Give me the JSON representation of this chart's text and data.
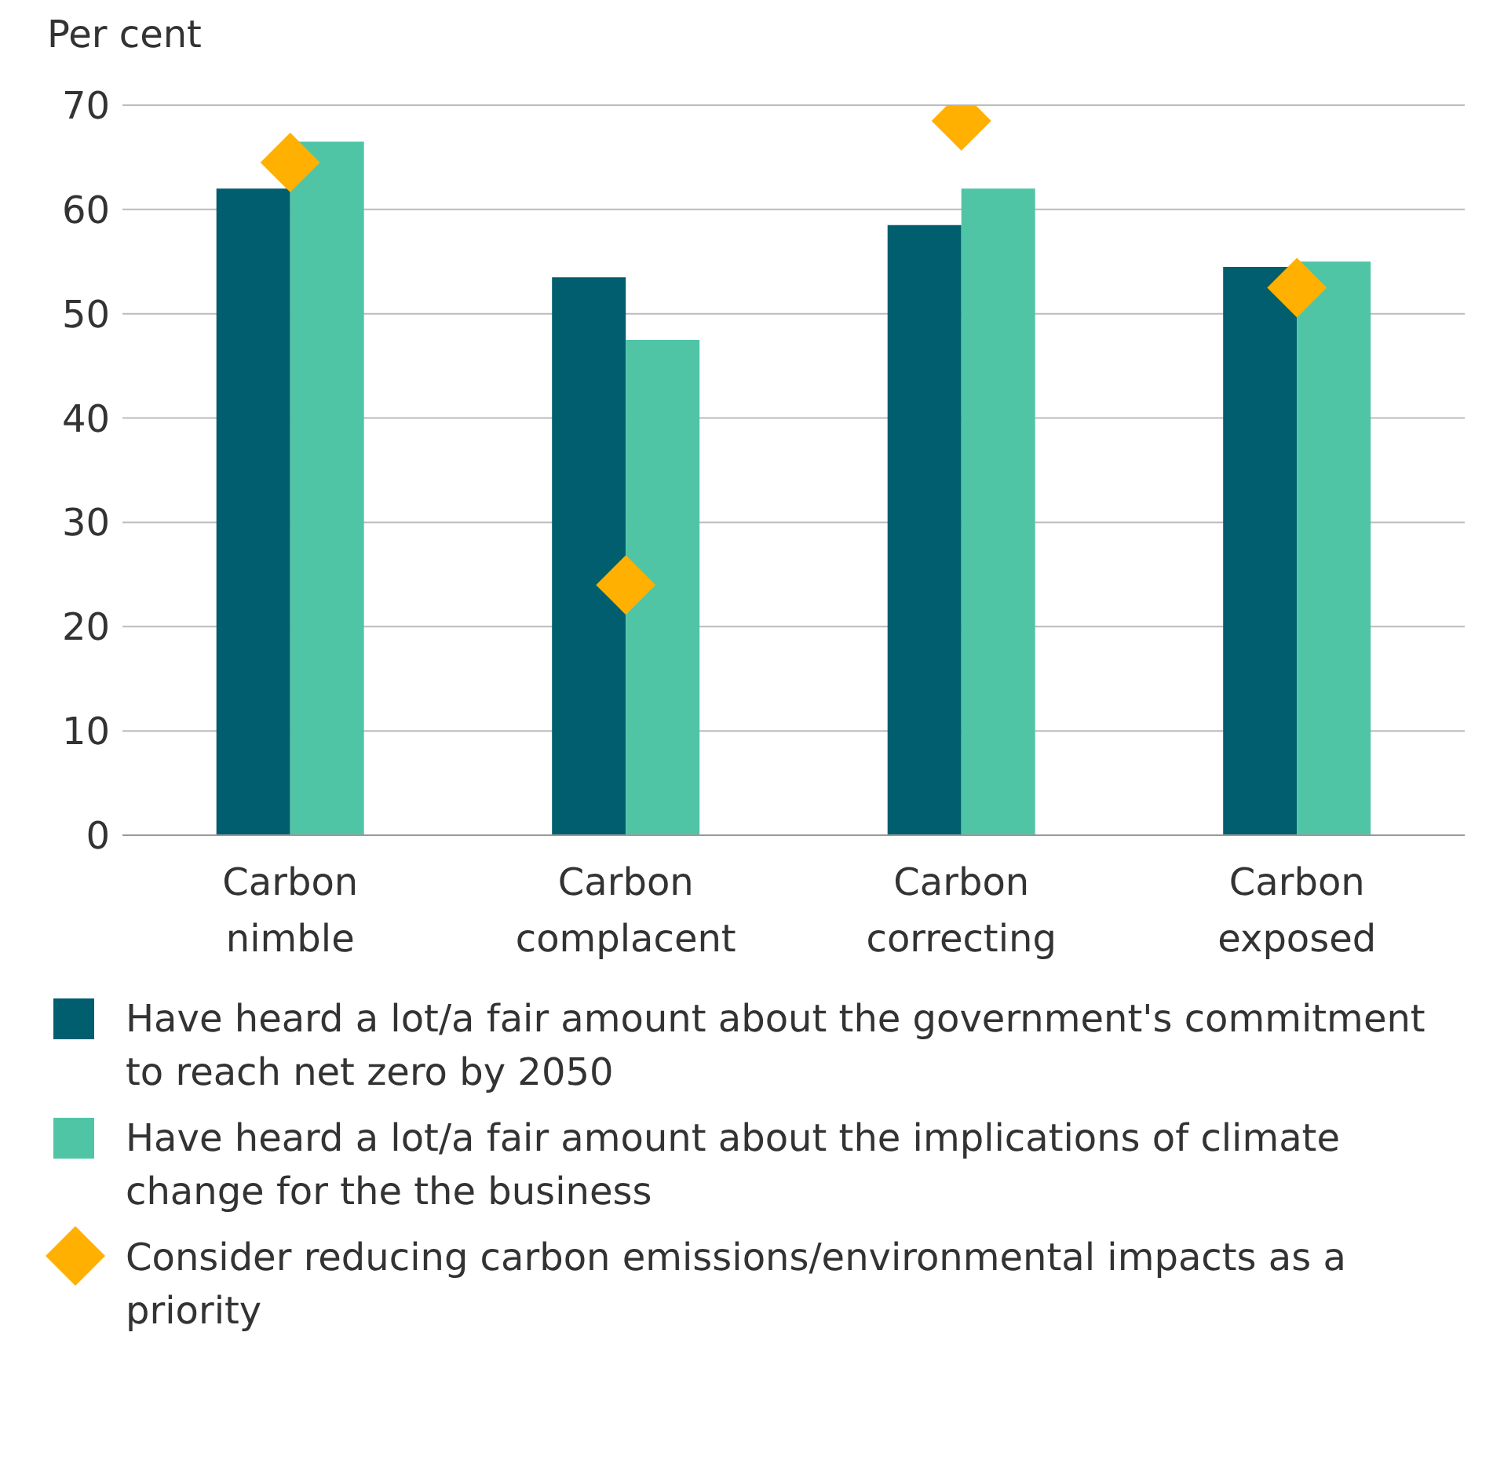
{
  "chart_data": {
    "type": "bar",
    "ylabel": "Per cent",
    "categories": [
      "Carbon nimble",
      "Carbon complacent",
      "Carbon correcting",
      "Carbon exposed"
    ],
    "series": [
      {
        "name": "Have heard a lot/a fair amount about the government's commitment to reach net zero by 2050",
        "color": "#005e6e",
        "values": [
          62,
          53.5,
          58.5,
          54.5
        ]
      },
      {
        "name": "Have heard a lot/a fair amount about the implications of climate change for the the business",
        "color": "#4fc5a6",
        "values": [
          66.5,
          47.5,
          62,
          55
        ]
      },
      {
        "name": "Consider reducing carbon emissions/environmental impacts as a priority",
        "type": "scatter",
        "marker": "diamond",
        "color": "#ffb000",
        "values": [
          64.5,
          24,
          68.5,
          52.5
        ]
      }
    ],
    "ylim": [
      0,
      70
    ],
    "yticks": [
      0,
      10,
      20,
      30,
      40,
      50,
      60,
      70
    ],
    "grid": "y",
    "legend": "bottom"
  }
}
